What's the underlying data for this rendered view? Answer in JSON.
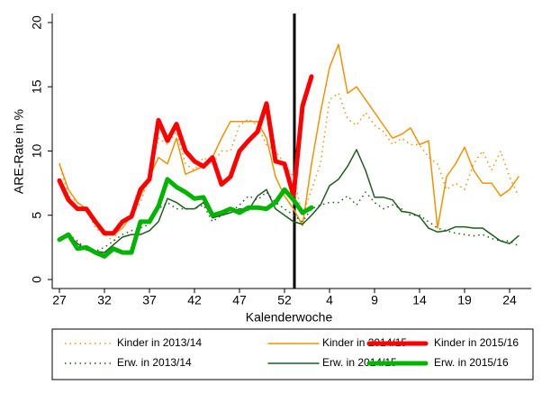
{
  "chart_data": {
    "type": "line",
    "xlabel": "Kalenderwoche",
    "ylabel": "ARE-Rate in %",
    "categories": [
      "27",
      null,
      null,
      null,
      null,
      "32",
      null,
      null,
      null,
      null,
      "37",
      null,
      null,
      null,
      null,
      "42",
      null,
      null,
      null,
      null,
      "47",
      null,
      null,
      null,
      null,
      "52",
      null,
      null,
      null,
      null,
      "4",
      null,
      null,
      null,
      null,
      "9",
      null,
      null,
      null,
      null,
      "14",
      null,
      null,
      null,
      null,
      "19",
      null,
      null,
      null,
      null,
      "24",
      null
    ],
    "ylim": [
      -0.7,
      20.7
    ],
    "yticks": [
      0,
      5,
      10,
      15,
      20
    ],
    "grid": false,
    "legend": "bottom",
    "series": [
      {
        "name": "Kinder in 2013/14",
        "color": "#f39200",
        "line_style": "dotted",
        "values": [
          9,
          6.5,
          6,
          5.5,
          4,
          3.5,
          3,
          4.5,
          5,
          6,
          8,
          11,
          10.5,
          11.5,
          9,
          8.5,
          9.5,
          9,
          10,
          10,
          12,
          12.5,
          12,
          10.5,
          10,
          9,
          8,
          5,
          7,
          9,
          14,
          14.5,
          12.5,
          12,
          13,
          12,
          11.5,
          10.5,
          11,
          10.5,
          10.5,
          9.5,
          9,
          7,
          7.5,
          7,
          9,
          10,
          8.5,
          10,
          8,
          6.5
        ]
      },
      {
        "name": "Kinder in 2014/15",
        "color": "#f39200",
        "line_style": "solid",
        "values": [
          9,
          7,
          6,
          5.5,
          4.5,
          3.8,
          3.5,
          4,
          5,
          6.5,
          8,
          9.5,
          9,
          11,
          8.2,
          8.5,
          8.8,
          9.5,
          11,
          12.3,
          12.3,
          12.3,
          12.3,
          11,
          8,
          6.5,
          5.5,
          4.2,
          9,
          13,
          16.5,
          18.3,
          14.5,
          15,
          14,
          13,
          12,
          11,
          11.3,
          11.8,
          10.5,
          10.8,
          4,
          8,
          9,
          10.3,
          8.5,
          7.5,
          7.5,
          6.5,
          7,
          8
        ]
      },
      {
        "name": "Kinder in 2015/16",
        "color": "#ff0000",
        "line_style": "thick",
        "values": [
          7.7,
          6.2,
          5.5,
          5.5,
          4.5,
          3.6,
          3.6,
          4.5,
          4.9,
          7,
          7.8,
          12.4,
          10.8,
          12.1,
          10,
          9.2,
          8.8,
          9.5,
          7.4,
          8,
          10,
          10.8,
          11.5,
          13.7,
          9.2,
          9,
          6.5,
          13.5,
          15.8,
          null,
          null,
          null,
          null,
          null,
          null,
          null,
          null,
          null,
          null,
          null,
          null,
          null,
          null,
          null,
          null,
          null,
          null,
          null,
          null,
          null,
          null,
          null
        ]
      },
      {
        "name": "Erw. in 2013/14",
        "color": "#1e5c1e",
        "line_style": "dotted",
        "values": [
          3.2,
          3.5,
          3,
          2.3,
          2.2,
          2.5,
          3,
          3.5,
          3.8,
          4,
          4.3,
          5.5,
          6,
          5.5,
          5.5,
          5.5,
          5.8,
          4.5,
          5,
          5.2,
          5.8,
          6.5,
          6.2,
          6.8,
          6,
          5.5,
          5,
          4.5,
          5.5,
          5.8,
          6,
          6,
          6.5,
          5.8,
          6.8,
          6,
          5.5,
          5.8,
          5.5,
          5,
          5,
          4.5,
          4,
          3.8,
          3.6,
          3.5,
          3.4,
          3.5,
          3.2,
          3,
          3,
          2.6
        ]
      },
      {
        "name": "Erw. in 2014/15",
        "color": "#1e5c1e",
        "line_style": "solid",
        "values": [
          3.2,
          3.5,
          2.8,
          2.3,
          2.2,
          2.1,
          2.7,
          3.3,
          3.5,
          3.5,
          3.8,
          4.5,
          6.3,
          6,
          5.5,
          5.5,
          6,
          4.8,
          5,
          5.2,
          5.5,
          5.4,
          6.5,
          7,
          5.5,
          5,
          4.5,
          4.3,
          5,
          5.8,
          7.3,
          7.8,
          8.8,
          10.1,
          8.5,
          6.4,
          6.4,
          6.2,
          5.3,
          5.2,
          4.9,
          4,
          3.7,
          3.8,
          4.1,
          4.1,
          4,
          4,
          3.5,
          3,
          2.8,
          3.4
        ]
      },
      {
        "name": "Erw. in 2015/16",
        "color": "#00b400",
        "line_style": "thick",
        "values": [
          3.1,
          3.5,
          2.4,
          2.5,
          2.1,
          1.8,
          2.4,
          2.1,
          2.1,
          4.5,
          4.5,
          5.7,
          7.8,
          7.2,
          6.8,
          6.3,
          6.4,
          5,
          5.2,
          5.5,
          5.2,
          5.6,
          5.6,
          5.5,
          6,
          7,
          6.2,
          5.2,
          5.6,
          null,
          null,
          null,
          null,
          null,
          null,
          null,
          null,
          null,
          null,
          null,
          null,
          null,
          null,
          null,
          null,
          null,
          null,
          null,
          null,
          null,
          null,
          null
        ]
      }
    ]
  }
}
